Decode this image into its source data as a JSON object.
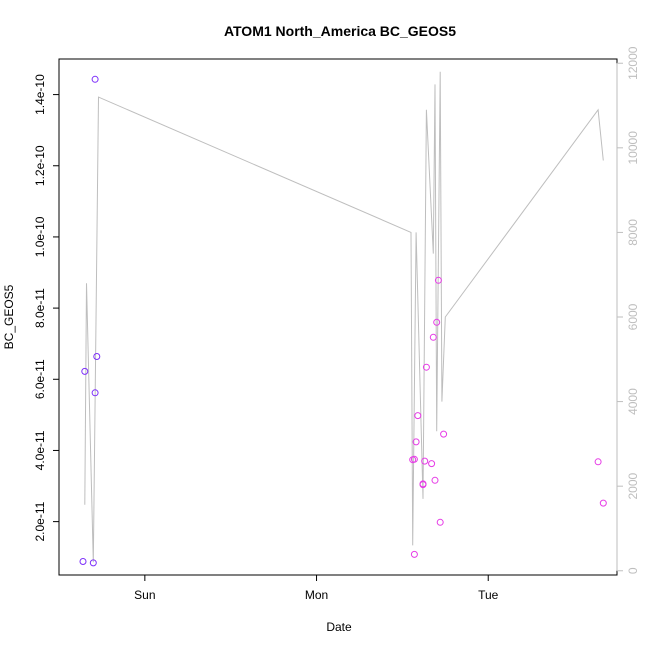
{
  "chart_data": {
    "type": "scatter",
    "title": "ATOM1 North_America BC_GEOS5",
    "xlabel": "Date",
    "ylabel": "BC_GEOS5",
    "x_ticks": [
      {
        "label": "Sun",
        "x": 1.0
      },
      {
        "label": "Mon",
        "x": 2.0
      },
      {
        "label": "Tue",
        "x": 3.0
      }
    ],
    "xlim": [
      0.5,
      3.75
    ],
    "y_ticks": [
      {
        "label": "2.0e-11",
        "value": 2e-11
      },
      {
        "label": "4.0e-11",
        "value": 4e-11
      },
      {
        "label": "6.0e-11",
        "value": 6e-11
      },
      {
        "label": "8.0e-11",
        "value": 8e-11
      },
      {
        "label": "1.0e-10",
        "value": 1e-10
      },
      {
        "label": "1.2e-10",
        "value": 1.2e-10
      },
      {
        "label": "1.4e-10",
        "value": 1.4e-10
      }
    ],
    "ylim": [
      5e-12,
      1.5e-10
    ],
    "y2_ticks": [
      {
        "label": "0",
        "value": 0
      },
      {
        "label": "2000",
        "value": 2000
      },
      {
        "label": "4000",
        "value": 4000
      },
      {
        "label": "6000",
        "value": 6000
      },
      {
        "label": "8000",
        "value": 8000
      },
      {
        "label": "10000",
        "value": 10000
      },
      {
        "label": "12000",
        "value": 12000
      }
    ],
    "y2lim": [
      -100,
      12100
    ],
    "points": [
      {
        "x": 0.64,
        "y": 8.8e-12,
        "color": "#7d2ffa"
      },
      {
        "x": 0.65,
        "y": 6.22e-11,
        "color": "#7d2ffa"
      },
      {
        "x": 0.7,
        "y": 8.4e-12,
        "color": "#7d2ffa"
      },
      {
        "x": 0.71,
        "y": 5.62e-11,
        "color": "#7d2ffa"
      },
      {
        "x": 0.71,
        "y": 1.443e-10,
        "color": "#7d2ffa"
      },
      {
        "x": 0.72,
        "y": 6.64e-11,
        "color": "#7d2ffa"
      },
      {
        "x": 2.56,
        "y": 3.74e-11,
        "color": "#e63ce6"
      },
      {
        "x": 2.57,
        "y": 3.75e-11,
        "color": "#e63ce6"
      },
      {
        "x": 2.57,
        "y": 1.08e-11,
        "color": "#e63ce6"
      },
      {
        "x": 2.58,
        "y": 4.24e-11,
        "color": "#e63ce6"
      },
      {
        "x": 2.59,
        "y": 4.98e-11,
        "color": "#e63ce6"
      },
      {
        "x": 2.62,
        "y": 3.04e-11,
        "color": "#e63ce6"
      },
      {
        "x": 2.62,
        "y": 3.06e-11,
        "color": "#e63ce6"
      },
      {
        "x": 2.63,
        "y": 3.7e-11,
        "color": "#e63ce6"
      },
      {
        "x": 2.64,
        "y": 6.34e-11,
        "color": "#e63ce6"
      },
      {
        "x": 2.67,
        "y": 3.63e-11,
        "color": "#e63ce6"
      },
      {
        "x": 2.68,
        "y": 7.18e-11,
        "color": "#e63ce6"
      },
      {
        "x": 2.69,
        "y": 3.16e-11,
        "color": "#e63ce6"
      },
      {
        "x": 2.7,
        "y": 7.6e-11,
        "color": "#e63ce6"
      },
      {
        "x": 2.71,
        "y": 8.78e-11,
        "color": "#e63ce6"
      },
      {
        "x": 2.72,
        "y": 1.98e-11,
        "color": "#e63ce6"
      },
      {
        "x": 2.74,
        "y": 4.46e-11,
        "color": "#e63ce6"
      },
      {
        "x": 3.64,
        "y": 3.68e-11,
        "color": "#e63ce6"
      },
      {
        "x": 3.67,
        "y": 2.52e-11,
        "color": "#e63ce6"
      }
    ],
    "line_series": {
      "axis": "right",
      "color": "#bebebe",
      "points": [
        {
          "x": 0.65,
          "y": 1560
        },
        {
          "x": 0.66,
          "y": 6800
        },
        {
          "x": 0.7,
          "y": 200
        },
        {
          "x": 0.73,
          "y": 11200
        },
        {
          "x": 2.55,
          "y": 8000
        },
        {
          "x": 2.56,
          "y": 600
        },
        {
          "x": 2.58,
          "y": 8000
        },
        {
          "x": 2.62,
          "y": 1700
        },
        {
          "x": 2.64,
          "y": 10900
        },
        {
          "x": 2.68,
          "y": 7500
        },
        {
          "x": 2.69,
          "y": 11500
        },
        {
          "x": 2.7,
          "y": 3300
        },
        {
          "x": 2.72,
          "y": 11800
        },
        {
          "x": 2.73,
          "y": 4000
        },
        {
          "x": 2.75,
          "y": 6000
        },
        {
          "x": 3.64,
          "y": 10900
        },
        {
          "x": 3.67,
          "y": 9700
        }
      ]
    }
  }
}
